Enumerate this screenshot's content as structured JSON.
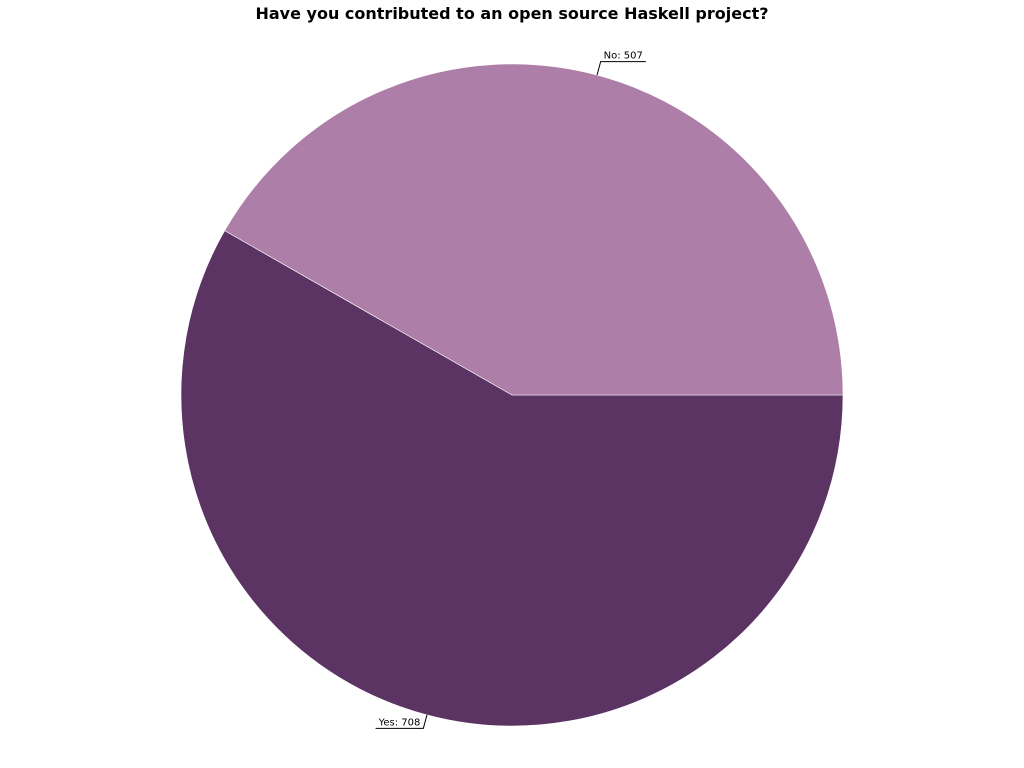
{
  "chart_data": {
    "type": "pie",
    "title": "Have you contributed to an open source Haskell project?",
    "slices": [
      {
        "label": "Yes",
        "value": 708,
        "display": "Yes: 708",
        "color": "#5c3464"
      },
      {
        "label": "No",
        "value": 507,
        "display": "No: 507",
        "color": "#ad7ea8"
      }
    ],
    "start_angle_deg": 0,
    "direction": "clockwise",
    "legend": "none"
  }
}
